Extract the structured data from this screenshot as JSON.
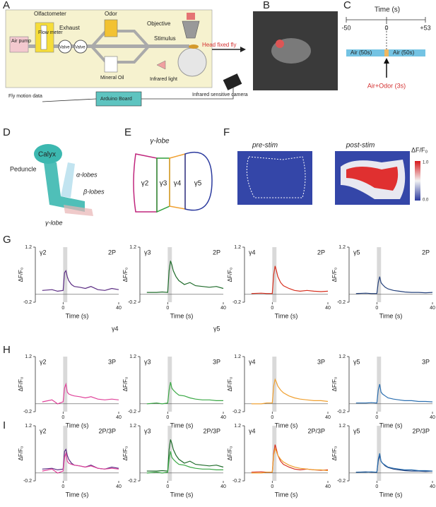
{
  "panel_labels": [
    "A",
    "B",
    "C",
    "D",
    "E",
    "F",
    "G",
    "H",
    "I"
  ],
  "a": {
    "olfactometer": "Olfactometer",
    "air_pump": "Air pump",
    "flow_meter": "Flow meter",
    "exhaust": "Exhaust",
    "valve_1": "Valve",
    "valve_2": "Valve",
    "odor": "Odor",
    "mineral_oil": "Mineral Oil",
    "objective": "Objective",
    "stimulus": "Stimulus",
    "fly": "Head fixed fly",
    "infrared_light": "Infrared light",
    "camera": "Infrared sensitive camera",
    "arduino": "Arduino Board",
    "motion": "Fly motion data"
  },
  "c": {
    "axis_label": "Time (s)",
    "tick_start": "-50",
    "tick_zero": "0",
    "tick_end": "+53",
    "air_1": "Air (50s)",
    "air_2": "Air (50s)",
    "odor": "Air+Odor (3s)"
  },
  "d": {
    "calyx": "Calyx",
    "peduncle": "Peduncle",
    "alpha": "α-lobes",
    "beta": "β-lobes",
    "gamma": "γ-lobe"
  },
  "e": {
    "title": "γ-lobe",
    "regions": [
      "γ2",
      "γ3",
      "γ4",
      "γ5"
    ]
  },
  "f": {
    "pre": "pre-stim",
    "post": "post-stim",
    "colorbar_label": "ΔF/F₀",
    "colorbar_max": "1.0",
    "colorbar_min": "0.0"
  },
  "stray_labels": [
    "γ4",
    "γ5"
  ],
  "traces": {
    "x": [
      -15,
      -8,
      -4,
      0,
      1,
      2,
      3,
      4,
      6,
      8,
      12,
      16,
      20,
      25,
      30,
      35,
      40
    ],
    "xlim": [
      -20,
      40
    ],
    "xticks": [
      0,
      40
    ],
    "ylim": [
      -0.2,
      1.2
    ],
    "yticks": [
      1.2,
      -0.2
    ],
    "stim": [
      0,
      3
    ],
    "x_label": "Time (s)",
    "y_label": "ΔF/F₀",
    "rows": [
      [
        {
          "region": "γ2",
          "method": "2P",
          "series": [
            {
              "color": "#5b2c83",
              "values": [
                0.1,
                0.12,
                0.08,
                0.1,
                0.55,
                0.6,
                0.45,
                0.35,
                0.25,
                0.2,
                0.18,
                0.15,
                0.2,
                0.12,
                0.1,
                0.15,
                0.12
              ]
            }
          ]
        },
        {
          "region": "γ3",
          "method": "2P",
          "series": [
            {
              "color": "#1e6b2a",
              "values": [
                0.05,
                0.05,
                0.06,
                0.05,
                0.6,
                0.85,
                0.75,
                0.6,
                0.45,
                0.35,
                0.25,
                0.3,
                0.22,
                0.2,
                0.18,
                0.2,
                0.15
              ]
            }
          ]
        },
        {
          "region": "γ4",
          "method": "2P",
          "series": [
            {
              "color": "#d7301f",
              "values": [
                0.02,
                0.03,
                0.02,
                0.02,
                0.5,
                0.72,
                0.6,
                0.45,
                0.3,
                0.22,
                0.15,
                0.1,
                0.08,
                0.1,
                0.08,
                0.07,
                0.08
              ]
            }
          ]
        },
        {
          "region": "γ5",
          "method": "2P",
          "series": [
            {
              "color": "#24407a",
              "values": [
                0.02,
                0.03,
                0.02,
                0.02,
                0.3,
                0.45,
                0.3,
                0.25,
                0.18,
                0.14,
                0.1,
                0.08,
                0.06,
                0.05,
                0.05,
                0.04,
                0.05
              ]
            }
          ]
        }
      ],
      [
        {
          "region": "γ2",
          "method": "3P",
          "series": [
            {
              "color": "#e0439a",
              "values": [
                0.05,
                0.1,
                0.0,
                0.05,
                0.4,
                0.5,
                0.3,
                0.25,
                0.22,
                0.2,
                0.18,
                0.15,
                0.18,
                0.12,
                0.1,
                0.12,
                0.1
              ]
            }
          ]
        },
        {
          "region": "γ3",
          "method": "3P",
          "series": [
            {
              "color": "#3aa845",
              "values": [
                0.0,
                0.02,
                0.0,
                0.02,
                0.35,
                0.55,
                0.4,
                0.35,
                0.28,
                0.22,
                0.2,
                0.15,
                0.12,
                0.1,
                0.1,
                0.08,
                0.08
              ]
            }
          ]
        },
        {
          "region": "γ4",
          "method": "3P",
          "series": [
            {
              "color": "#f0a030",
              "values": [
                0.0,
                0.0,
                0.02,
                0.02,
                0.45,
                0.62,
                0.55,
                0.45,
                0.35,
                0.28,
                0.2,
                0.15,
                0.12,
                0.1,
                0.08,
                0.08,
                0.06
              ]
            }
          ]
        },
        {
          "region": "γ5",
          "method": "3P",
          "series": [
            {
              "color": "#2c6fb0",
              "values": [
                0.02,
                0.02,
                0.03,
                0.02,
                0.35,
                0.5,
                0.3,
                0.25,
                0.2,
                0.15,
                0.12,
                0.1,
                0.08,
                0.08,
                0.06,
                0.06,
                0.05
              ]
            }
          ]
        }
      ],
      [
        {
          "region": "γ2",
          "method": "2P/3P",
          "series": [
            {
              "color": "#5b2c83",
              "values": [
                0.1,
                0.12,
                0.08,
                0.1,
                0.55,
                0.6,
                0.45,
                0.35,
                0.25,
                0.2,
                0.18,
                0.15,
                0.2,
                0.12,
                0.1,
                0.15,
                0.12
              ]
            },
            {
              "color": "#e0439a",
              "values": [
                0.05,
                0.1,
                0.0,
                0.05,
                0.4,
                0.5,
                0.3,
                0.25,
                0.22,
                0.2,
                0.18,
                0.15,
                0.18,
                0.12,
                0.1,
                0.12,
                0.1
              ]
            }
          ]
        },
        {
          "region": "γ3",
          "method": "2P/3P",
          "series": [
            {
              "color": "#1e6b2a",
              "values": [
                0.05,
                0.05,
                0.06,
                0.05,
                0.6,
                0.85,
                0.75,
                0.6,
                0.45,
                0.35,
                0.25,
                0.3,
                0.22,
                0.2,
                0.18,
                0.2,
                0.15
              ]
            },
            {
              "color": "#3aa845",
              "values": [
                0.0,
                0.02,
                0.0,
                0.02,
                0.35,
                0.55,
                0.4,
                0.35,
                0.28,
                0.22,
                0.2,
                0.15,
                0.12,
                0.1,
                0.1,
                0.08,
                0.08
              ]
            }
          ]
        },
        {
          "region": "γ4",
          "method": "2P/3P",
          "series": [
            {
              "color": "#d7301f",
              "values": [
                0.02,
                0.03,
                0.02,
                0.02,
                0.5,
                0.72,
                0.6,
                0.45,
                0.3,
                0.22,
                0.15,
                0.1,
                0.08,
                0.1,
                0.08,
                0.07,
                0.08
              ]
            },
            {
              "color": "#f0a030",
              "values": [
                0.0,
                0.0,
                0.02,
                0.02,
                0.45,
                0.62,
                0.55,
                0.45,
                0.35,
                0.28,
                0.2,
                0.15,
                0.12,
                0.1,
                0.08,
                0.08,
                0.06
              ]
            }
          ]
        },
        {
          "region": "γ5",
          "method": "2P/3P",
          "series": [
            {
              "color": "#24407a",
              "values": [
                0.02,
                0.03,
                0.02,
                0.02,
                0.3,
                0.45,
                0.3,
                0.25,
                0.18,
                0.14,
                0.1,
                0.08,
                0.06,
                0.05,
                0.05,
                0.04,
                0.05
              ]
            },
            {
              "color": "#2c6fb0",
              "values": [
                0.02,
                0.02,
                0.03,
                0.02,
                0.35,
                0.5,
                0.3,
                0.25,
                0.2,
                0.15,
                0.12,
                0.1,
                0.08,
                0.08,
                0.06,
                0.06,
                0.05
              ]
            }
          ]
        }
      ]
    ]
  }
}
